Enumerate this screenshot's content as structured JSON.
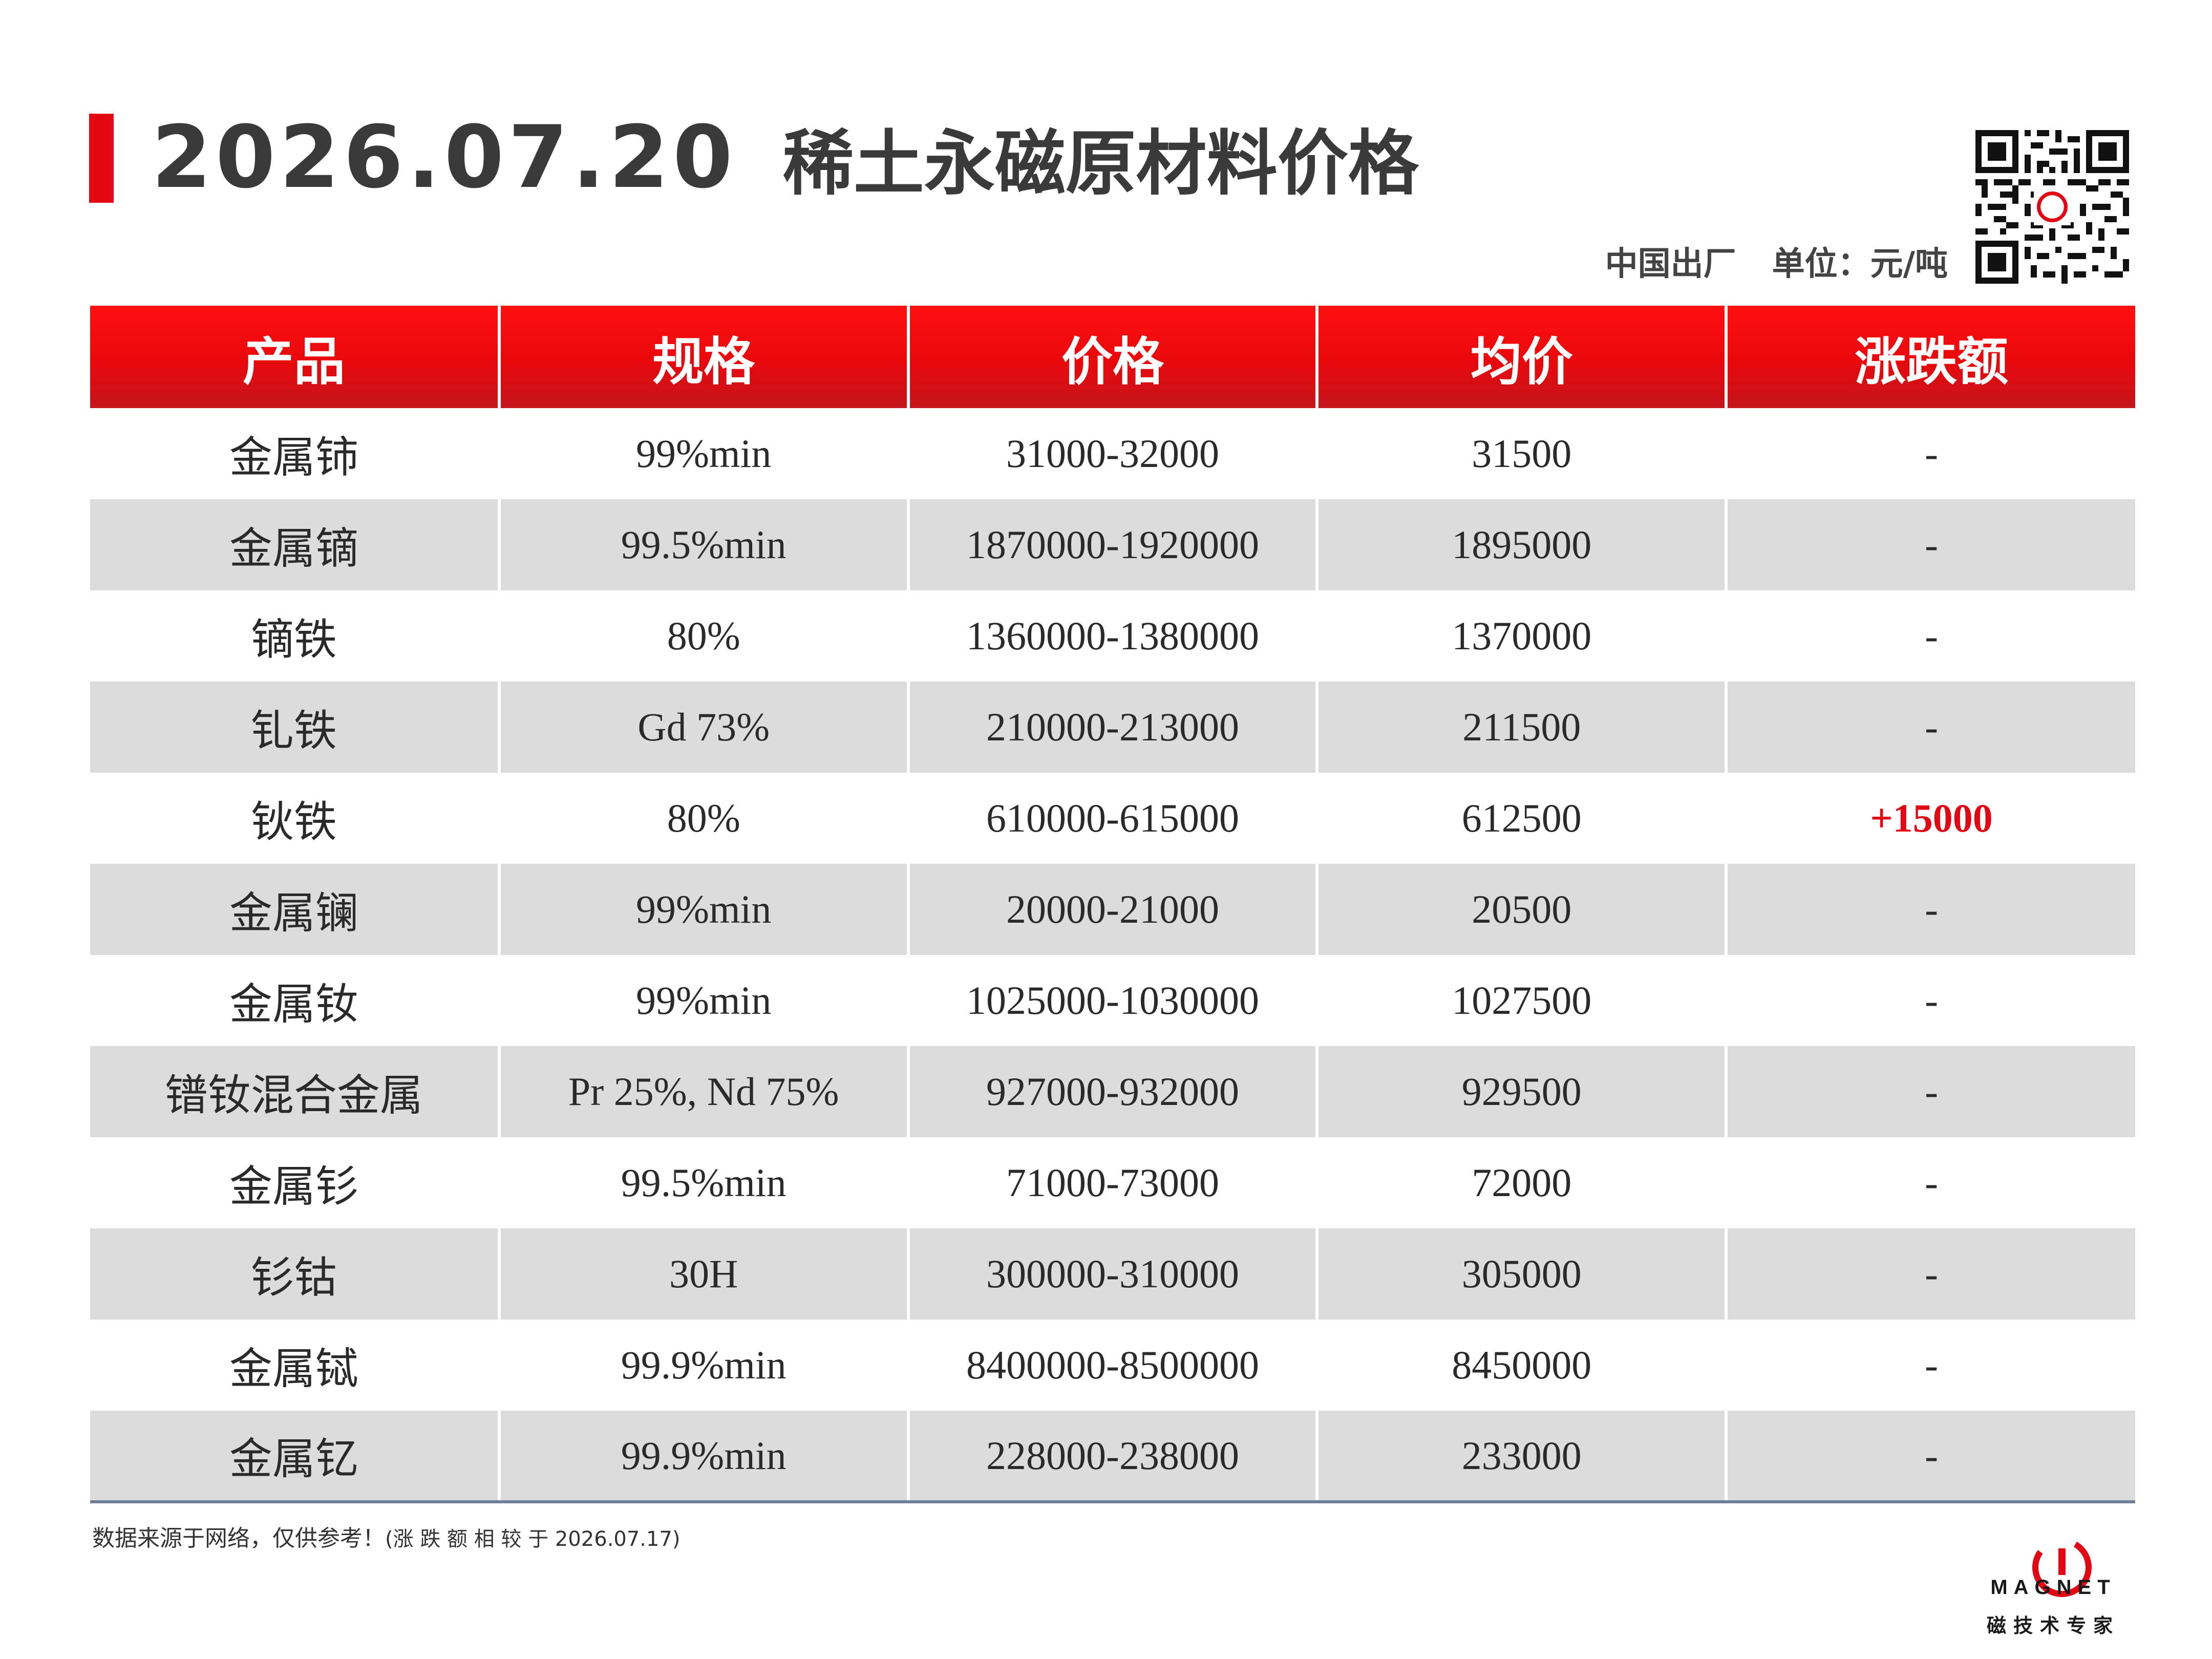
{
  "header": {
    "date": "2026.07.20",
    "title": "稀土永磁原材料价格",
    "origin": "中国出厂",
    "unit": "单位：元/吨"
  },
  "table": {
    "columns": [
      "产品",
      "规格",
      "价格",
      "均价",
      "涨跌额"
    ],
    "rows": [
      {
        "product": "金属铈",
        "spec": "99%min",
        "price": "31000-32000",
        "avg": "31500",
        "change": "-"
      },
      {
        "product": "金属镝",
        "spec": "99.5%min",
        "price": "1870000-1920000",
        "avg": "1895000",
        "change": "-"
      },
      {
        "product": "镝铁",
        "spec": "80%",
        "price": "1360000-1380000",
        "avg": "1370000",
        "change": "-"
      },
      {
        "product": "钆铁",
        "spec": "Gd 73%",
        "price": "210000-213000",
        "avg": "211500",
        "change": "-"
      },
      {
        "product": "钬铁",
        "spec": "80%",
        "price": "610000-615000",
        "avg": "612500",
        "change": "+15000"
      },
      {
        "product": "金属镧",
        "spec": "99%min",
        "price": "20000-21000",
        "avg": "20500",
        "change": "-"
      },
      {
        "product": "金属钕",
        "spec": "99%min",
        "price": "1025000-1030000",
        "avg": "1027500",
        "change": "-"
      },
      {
        "product": "镨钕混合金属",
        "spec": "Pr 25%, Nd 75%",
        "price": "927000-932000",
        "avg": "929500",
        "change": "-"
      },
      {
        "product": "金属钐",
        "spec": "99.5%min",
        "price": "71000-73000",
        "avg": "72000",
        "change": "-"
      },
      {
        "product": "钐钴",
        "spec": "30H",
        "price": "300000-310000",
        "avg": "305000",
        "change": "-"
      },
      {
        "product": "金属铽",
        "spec": "99.9%min",
        "price": "8400000-8500000",
        "avg": "8450000",
        "change": "-"
      },
      {
        "product": "金属钇",
        "spec": "99.9%min",
        "price": "228000-238000",
        "avg": "233000",
        "change": "-"
      }
    ]
  },
  "footer": {
    "note": "数据来源于网络，仅供参考！",
    "note_tail": "(涨 跌 额 相 较 于 2026.07.17)"
  },
  "logo": {
    "word": "MAGNET",
    "sub": "磁技术专家"
  },
  "colors": {
    "accent": "#e30613",
    "header_bg": "#e8080c",
    "row_alt": "#dcdcdc",
    "text": "#333333"
  },
  "icons": [
    "qr-code-icon",
    "magnet-logo-icon"
  ]
}
